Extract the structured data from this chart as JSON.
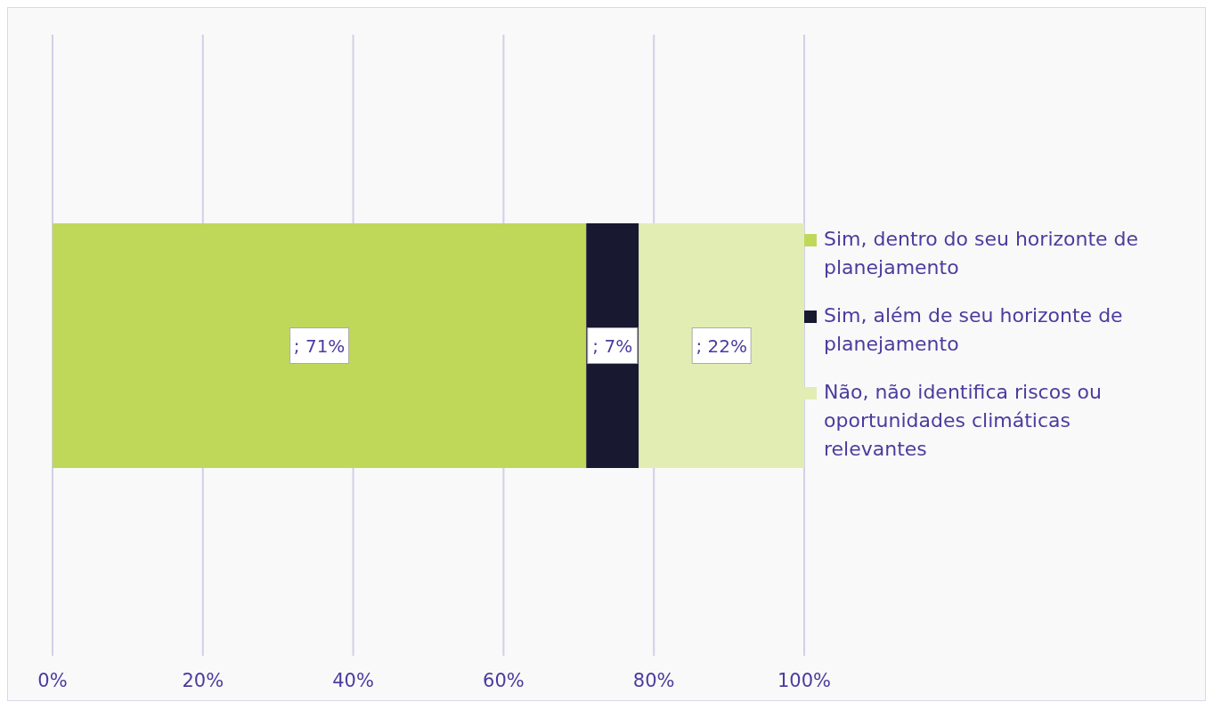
{
  "chart_data": {
    "type": "bar",
    "orientation": "horizontal",
    "stacked": true,
    "categories": [
      null
    ],
    "series": [
      {
        "name": "Sim, dentro do seu horizonte de planejamento",
        "color": "#bfd85a",
        "values": [
          71
        ],
        "value_labels": [
          "; 71%"
        ]
      },
      {
        "name": "Sim, além de seu horizonte de planejamento",
        "color": "#181830",
        "values": [
          7
        ],
        "value_labels": [
          "; 7%"
        ]
      },
      {
        "name": "Não, não identifica riscos ou oportunidades climáticas relevantes",
        "color": "#e2edb3",
        "values": [
          22
        ],
        "value_labels": [
          "; 22%"
        ]
      }
    ],
    "xlim": [
      0,
      100
    ],
    "xticks": [
      {
        "value": 0,
        "label": "0%"
      },
      {
        "value": 20,
        "label": "20%"
      },
      {
        "value": 40,
        "label": "40%"
      },
      {
        "value": 60,
        "label": "60%"
      },
      {
        "value": 80,
        "label": "80%"
      },
      {
        "value": 100,
        "label": "100%"
      }
    ],
    "grid": "x",
    "legend": "right"
  }
}
